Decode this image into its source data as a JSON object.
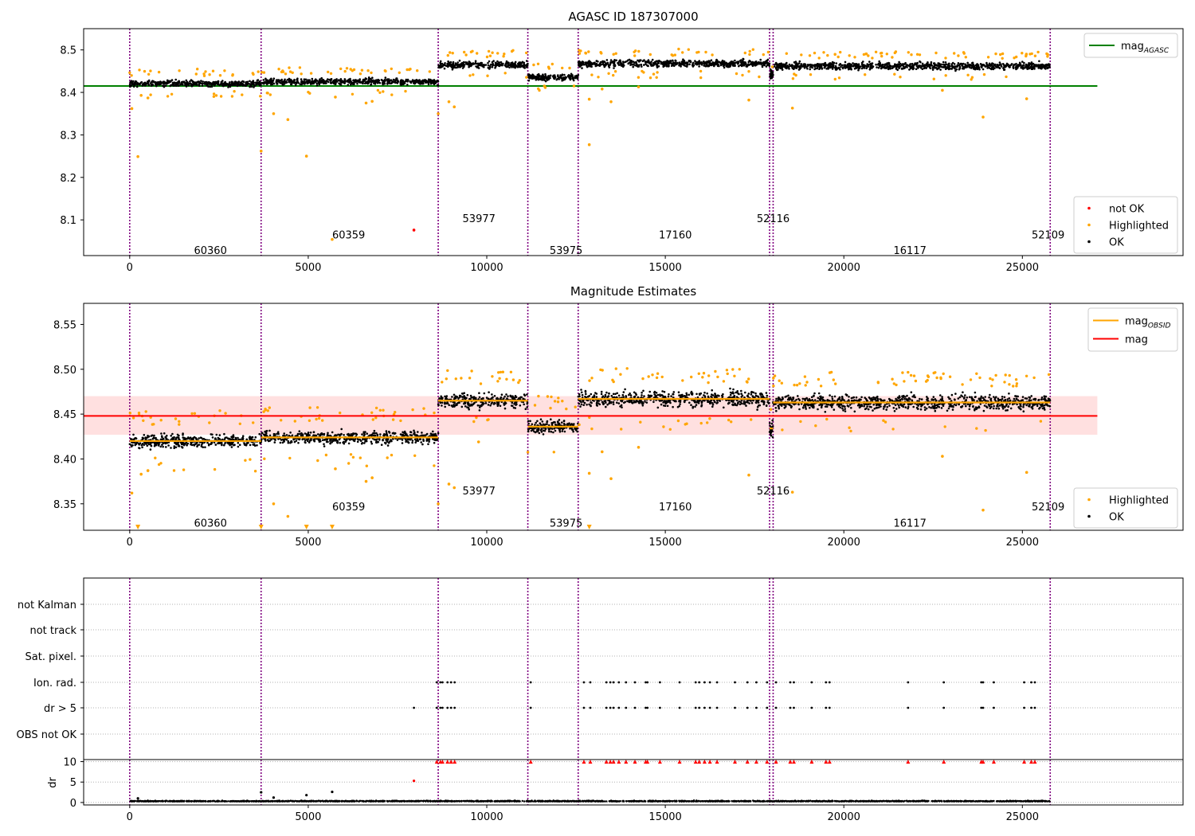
{
  "chart_data": [
    {
      "type": "scatter",
      "title": "AGASC ID 187307000",
      "xlabel": "",
      "ylabel": "",
      "xlim": [
        -1290,
        29500
      ],
      "ylim": [
        8.016,
        8.55
      ],
      "xticks": [
        0,
        5000,
        10000,
        15000,
        20000,
        25000
      ],
      "yticks": [
        8.1,
        8.2,
        8.3,
        8.4,
        8.5
      ],
      "lines": [
        {
          "name": "mag_AGASC",
          "y": 8.415,
          "x_range": [
            -1290,
            27100
          ],
          "color": "#008000"
        }
      ],
      "legends": [
        {
          "position": "upper-right",
          "entries": [
            {
              "label": "mag",
              "sub": "AGASC",
              "kind": "line",
              "color": "#008000"
            }
          ]
        },
        {
          "position": "lower-right",
          "entries": [
            {
              "label": "not OK",
              "kind": "dot",
              "color": "#ff0000"
            },
            {
              "label": "Highlighted",
              "kind": "dot",
              "color": "#ffa500"
            },
            {
              "label": "OK",
              "kind": "dot",
              "color": "#000000"
            }
          ]
        }
      ],
      "obsid_boundaries": [
        0,
        3680,
        8640,
        11150,
        12560,
        17920,
        18020,
        25780
      ],
      "obsids": [
        {
          "label": "60360",
          "x": 1800,
          "y": 8.029
        },
        {
          "label": "60359",
          "x": 5670,
          "y": 8.066
        },
        {
          "label": "53977",
          "x": 9320,
          "y": 8.104
        },
        {
          "label": "53975",
          "x": 11760,
          "y": 8.029
        },
        {
          "label": "17160",
          "x": 14820,
          "y": 8.066
        },
        {
          "label": "52116",
          "x": 17560,
          "y": 8.104
        },
        {
          "label": "16117",
          "x": 21390,
          "y": 8.029
        },
        {
          "label": "52109",
          "x": 25260,
          "y": 8.066
        }
      ],
      "segments": [
        {
          "x": [
            0,
            3680
          ],
          "mean": 8.421,
          "spread": 0.012
        },
        {
          "x": [
            3680,
            8640
          ],
          "mean": 8.425,
          "spread": 0.012
        },
        {
          "x": [
            8640,
            11150
          ],
          "mean": 8.465,
          "spread": 0.014
        },
        {
          "x": [
            11150,
            12560
          ],
          "mean": 8.436,
          "spread": 0.012
        },
        {
          "x": [
            12560,
            17920
          ],
          "mean": 8.468,
          "spread": 0.014
        },
        {
          "x": [
            17920,
            18020
          ],
          "mean": 8.44,
          "spread": 0.02
        },
        {
          "x": [
            18020,
            25780
          ],
          "mean": 8.462,
          "spread": 0.014
        }
      ],
      "highlighted_outliers": [
        {
          "x": 60,
          "y": 8.362
        },
        {
          "x": 230,
          "y": 8.249
        },
        {
          "x": 320,
          "y": 8.393
        },
        {
          "x": 510,
          "y": 8.387
        },
        {
          "x": 3680,
          "y": 8.262
        },
        {
          "x": 4030,
          "y": 8.35
        },
        {
          "x": 4430,
          "y": 8.336
        },
        {
          "x": 4950,
          "y": 8.25
        },
        {
          "x": 5670,
          "y": 8.054
        },
        {
          "x": 5760,
          "y": 8.389
        },
        {
          "x": 6620,
          "y": 8.375
        },
        {
          "x": 6790,
          "y": 8.379
        },
        {
          "x": 8640,
          "y": 8.35
        },
        {
          "x": 8940,
          "y": 8.378
        },
        {
          "x": 9090,
          "y": 8.366
        },
        {
          "x": 12870,
          "y": 8.277
        },
        {
          "x": 12870,
          "y": 8.384
        },
        {
          "x": 13230,
          "y": 8.408
        },
        {
          "x": 13480,
          "y": 8.378
        },
        {
          "x": 14250,
          "y": 8.413
        },
        {
          "x": 17340,
          "y": 8.382
        },
        {
          "x": 18560,
          "y": 8.363
        },
        {
          "x": 22760,
          "y": 8.405
        },
        {
          "x": 23900,
          "y": 8.342
        },
        {
          "x": 25120,
          "y": 8.385
        }
      ],
      "not_ok_points": [
        {
          "x": 7960,
          "y": 8.076
        }
      ]
    },
    {
      "type": "scatter",
      "title": "Magnitude Estimates",
      "xlabel": "",
      "ylabel": "",
      "xlim": [
        -1290,
        29500
      ],
      "ylim": [
        8.3205,
        8.5735
      ],
      "xticks": [
        0,
        5000,
        10000,
        15000,
        20000,
        25000
      ],
      "yticks": [
        8.35,
        8.4,
        8.45,
        8.5,
        8.55
      ],
      "band": {
        "y": [
          8.427,
          8.47
        ],
        "x_range": [
          -1290,
          27100
        ],
        "color": "#ff0000",
        "opacity": 0.12
      },
      "lines": [
        {
          "name": "mag",
          "y": 8.448,
          "x_range": [
            -1290,
            27100
          ],
          "color": "#ff0000"
        }
      ],
      "obsid_mag_lines": [
        {
          "x": [
            0,
            3680
          ],
          "y": 8.42
        },
        {
          "x": [
            3680,
            8640
          ],
          "y": 8.424
        },
        {
          "x": [
            8640,
            11150
          ],
          "y": 8.465
        },
        {
          "x": [
            11150,
            12560
          ],
          "y": 8.436
        },
        {
          "x": [
            12560,
            17920
          ],
          "y": 8.467
        },
        {
          "x": [
            17920,
            18020
          ],
          "y": 8.434
        },
        {
          "x": [
            18020,
            25780
          ],
          "y": 8.463
        }
      ],
      "legends": [
        {
          "position": "upper-right",
          "entries": [
            {
              "label": "mag",
              "sub": "OBSID",
              "kind": "line",
              "color": "#ffa500"
            },
            {
              "label": "mag",
              "sub": "",
              "kind": "line",
              "color": "#ff0000"
            }
          ]
        },
        {
          "position": "lower-right",
          "entries": [
            {
              "label": "Highlighted",
              "kind": "dot",
              "color": "#ffa500"
            },
            {
              "label": "OK",
              "kind": "dot",
              "color": "#000000"
            }
          ]
        }
      ],
      "obsid_boundaries": [
        0,
        3680,
        8640,
        11150,
        12560,
        17920,
        18020,
        25780
      ],
      "obsids": [
        {
          "label": "60360",
          "x": 1800,
          "y": 8.329
        },
        {
          "label": "60359",
          "x": 5670,
          "y": 8.347
        },
        {
          "label": "53977",
          "x": 9320,
          "y": 8.365
        },
        {
          "label": "53975",
          "x": 11760,
          "y": 8.329
        },
        {
          "label": "17160",
          "x": 14820,
          "y": 8.347
        },
        {
          "label": "52116",
          "x": 17560,
          "y": 8.365
        },
        {
          "label": "16117",
          "x": 21390,
          "y": 8.329
        },
        {
          "label": "52109",
          "x": 25260,
          "y": 8.347
        }
      ],
      "segments": [
        {
          "x": [
            0,
            3680
          ],
          "mean": 8.42,
          "spread": 0.012
        },
        {
          "x": [
            3680,
            8640
          ],
          "mean": 8.424,
          "spread": 0.012
        },
        {
          "x": [
            8640,
            11150
          ],
          "mean": 8.465,
          "spread": 0.014
        },
        {
          "x": [
            11150,
            12560
          ],
          "mean": 8.436,
          "spread": 0.012
        },
        {
          "x": [
            12560,
            17920
          ],
          "mean": 8.467,
          "spread": 0.014
        },
        {
          "x": [
            17920,
            18020
          ],
          "mean": 8.434,
          "spread": 0.02
        },
        {
          "x": [
            18020,
            25780
          ],
          "mean": 8.463,
          "spread": 0.014
        }
      ],
      "highlighted_outliers": [
        {
          "x": 60,
          "y": 8.362
        },
        {
          "x": 320,
          "y": 8.383
        },
        {
          "x": 510,
          "y": 8.387
        },
        {
          "x": 4030,
          "y": 8.35
        },
        {
          "x": 4430,
          "y": 8.336
        },
        {
          "x": 5760,
          "y": 8.389
        },
        {
          "x": 6620,
          "y": 8.375
        },
        {
          "x": 6790,
          "y": 8.379
        },
        {
          "x": 8640,
          "y": 8.35
        },
        {
          "x": 8940,
          "y": 8.372
        },
        {
          "x": 9090,
          "y": 8.368
        },
        {
          "x": 9770,
          "y": 8.419
        },
        {
          "x": 12870,
          "y": 8.384
        },
        {
          "x": 13230,
          "y": 8.408
        },
        {
          "x": 13480,
          "y": 8.378
        },
        {
          "x": 14250,
          "y": 8.413
        },
        {
          "x": 17340,
          "y": 8.382
        },
        {
          "x": 18560,
          "y": 8.363
        },
        {
          "x": 22760,
          "y": 8.403
        },
        {
          "x": 23900,
          "y": 8.343
        },
        {
          "x": 25120,
          "y": 8.385
        }
      ],
      "off_scale_low": [
        230,
        3680,
        4950,
        5670,
        12870
      ]
    },
    {
      "type": "scatter",
      "title": "",
      "xlabel": "",
      "ylabel": "",
      "xlim": [
        -1290,
        29500
      ],
      "xticks": [
        0,
        5000,
        10000,
        15000,
        20000,
        25000
      ],
      "flag_rows": [
        "not Kalman",
        "not track",
        "Sat. pixel.",
        "Ion. rad.",
        "dr > 5",
        "OBS not OK"
      ],
      "flag_events": {
        "Ion. rad.": [
          8600,
          8700,
          8760,
          8900,
          9000,
          9100,
          11230,
          12720,
          12900,
          13350,
          13460,
          13550,
          13700,
          13900,
          14150,
          14450,
          14500,
          14850,
          15400,
          15850,
          15950,
          16100,
          16250,
          16450,
          16950,
          17300,
          17550,
          17850,
          18100,
          18500,
          18600,
          19100,
          19500,
          19600,
          21800,
          22800,
          23850,
          23900,
          24200,
          25050,
          25250,
          25350
        ],
        "dr > 5": [
          7960,
          8600,
          8700,
          8760,
          8900,
          9000,
          9100,
          11230,
          12720,
          12900,
          13350,
          13460,
          13550,
          13700,
          13900,
          14150,
          14450,
          14500,
          14850,
          15400,
          15850,
          15950,
          16100,
          16250,
          16450,
          16950,
          17300,
          17550,
          17850,
          18100,
          18500,
          18600,
          19100,
          19500,
          19600,
          21800,
          22800,
          23850,
          23900,
          24200,
          25050,
          25250,
          25350
        ]
      },
      "dr": {
        "ylabel": "dr",
        "ylim": [
          -0.6,
          10.5
        ],
        "yticks": [
          0,
          5,
          10
        ],
        "baseline_mean": 0.25,
        "clipped_value": 10,
        "clipped_events": [
          8600,
          8700,
          8760,
          8900,
          9000,
          9100,
          11230,
          12720,
          12900,
          13350,
          13460,
          13550,
          13700,
          13900,
          14150,
          14450,
          14500,
          14850,
          15400,
          15850,
          15950,
          16100,
          16250,
          16450,
          16950,
          17300,
          17550,
          17850,
          18100,
          18500,
          18600,
          19100,
          19500,
          19600,
          21800,
          22800,
          23850,
          23900,
          24200,
          25050,
          25250,
          25350
        ],
        "outliers": [
          {
            "x": 230,
            "y": 1.0,
            "color": "#000000"
          },
          {
            "x": 3680,
            "y": 2.5,
            "color": "#000000"
          },
          {
            "x": 4030,
            "y": 1.2,
            "color": "#000000"
          },
          {
            "x": 4950,
            "y": 1.8,
            "color": "#000000"
          },
          {
            "x": 5670,
            "y": 2.6,
            "color": "#000000"
          },
          {
            "x": 7960,
            "y": 5.3,
            "color": "#ff0000"
          }
        ]
      },
      "obsid_boundaries": [
        0,
        3680,
        8640,
        11150,
        12560,
        17920,
        18020,
        25780
      ]
    }
  ],
  "colors": {
    "ok": "#000000",
    "highlighted": "#ffa500",
    "not_ok": "#ff0000",
    "agasc_line": "#008000",
    "obsid_line": "#ffa500",
    "mag_line": "#ff0000",
    "boundary": "#800080",
    "grid": "#b0b0b0"
  }
}
